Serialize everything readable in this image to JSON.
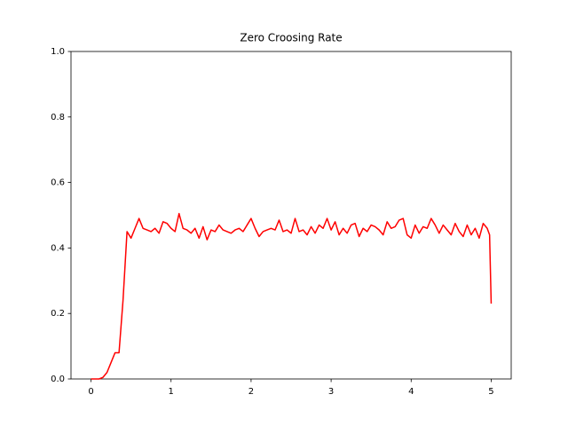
{
  "chart_data": {
    "type": "line",
    "title": "Zero Croosing Rate",
    "color": "#ff0000",
    "x": [
      0,
      0.05,
      0.1,
      0.15,
      0.2,
      0.25,
      0.3,
      0.35,
      0.4,
      0.45,
      0.5,
      0.55,
      0.6,
      0.65,
      0.7,
      0.75,
      0.8,
      0.85,
      0.9,
      0.95,
      1,
      1.05,
      1.1,
      1.15,
      1.2,
      1.25,
      1.3,
      1.35,
      1.4,
      1.45,
      1.5,
      1.55,
      1.6,
      1.65,
      1.7,
      1.75,
      1.8,
      1.85,
      1.9,
      1.95,
      2,
      2.05,
      2.1,
      2.15,
      2.2,
      2.25,
      2.3,
      2.35,
      2.4,
      2.45,
      2.5,
      2.55,
      2.6,
      2.65,
      2.7,
      2.75,
      2.8,
      2.85,
      2.9,
      2.95,
      3,
      3.05,
      3.1,
      3.15,
      3.2,
      3.25,
      3.3,
      3.35,
      3.4,
      3.45,
      3.5,
      3.55,
      3.6,
      3.65,
      3.7,
      3.75,
      3.8,
      3.85,
      3.9,
      3.95,
      4,
      4.05,
      4.1,
      4.15,
      4.2,
      4.25,
      4.3,
      4.35,
      4.4,
      4.45,
      4.5,
      4.55,
      4.6,
      4.65,
      4.7,
      4.75,
      4.8,
      4.85,
      4.9,
      4.95,
      4.98,
      5
    ],
    "values": [
      0,
      0,
      0,
      0.005,
      0.02,
      0.05,
      0.08,
      0.08,
      0.24,
      0.45,
      0.43,
      0.46,
      0.49,
      0.46,
      0.455,
      0.45,
      0.46,
      0.445,
      0.48,
      0.475,
      0.46,
      0.45,
      0.505,
      0.46,
      0.455,
      0.445,
      0.46,
      0.43,
      0.465,
      0.425,
      0.455,
      0.45,
      0.47,
      0.455,
      0.45,
      0.445,
      0.455,
      0.46,
      0.45,
      0.47,
      0.49,
      0.46,
      0.435,
      0.45,
      0.455,
      0.46,
      0.455,
      0.485,
      0.45,
      0.455,
      0.445,
      0.49,
      0.45,
      0.455,
      0.44,
      0.465,
      0.445,
      0.47,
      0.46,
      0.49,
      0.455,
      0.48,
      0.44,
      0.46,
      0.445,
      0.47,
      0.475,
      0.435,
      0.46,
      0.45,
      0.47,
      0.465,
      0.455,
      0.44,
      0.48,
      0.46,
      0.465,
      0.485,
      0.49,
      0.44,
      0.43,
      0.47,
      0.445,
      0.465,
      0.46,
      0.49,
      0.47,
      0.445,
      0.47,
      0.455,
      0.44,
      0.475,
      0.45,
      0.435,
      0.47,
      0.44,
      0.46,
      0.43,
      0.475,
      0.46,
      0.44,
      0.23
    ],
    "xlim": [
      -0.25,
      5.25
    ],
    "xticks": [
      0,
      1,
      2,
      3,
      4,
      5
    ],
    "ylim": [
      0,
      1
    ],
    "yticks": [
      {
        "value": 0,
        "label": "0.0"
      },
      {
        "value": 0.2,
        "label": "0.2"
      },
      {
        "value": 0.4,
        "label": "0.4"
      },
      {
        "value": 0.6,
        "label": "0.6"
      },
      {
        "value": 0.8,
        "label": "0.8"
      },
      {
        "value": 1,
        "label": "1.0"
      }
    ]
  }
}
